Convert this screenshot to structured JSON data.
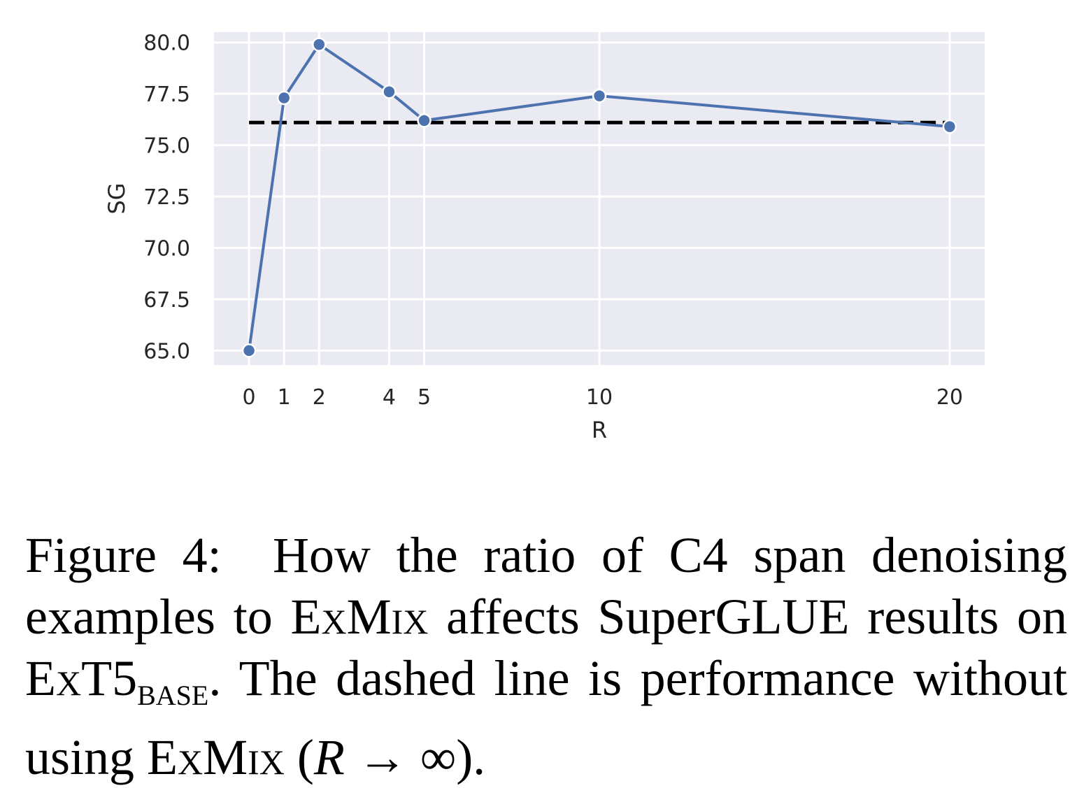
{
  "chart_data": {
    "type": "line",
    "xlabel": "R",
    "ylabel": "SG",
    "x": [
      0,
      1,
      2,
      4,
      5,
      10,
      20
    ],
    "x_ticks": [
      "0",
      "1",
      "2",
      "4",
      "5",
      "10",
      "20"
    ],
    "series": [
      {
        "values": [
          65.0,
          77.3,
          79.9,
          77.6,
          76.2,
          77.4,
          75.9
        ],
        "color": "#4c72b0",
        "marker": "circle"
      }
    ],
    "reference_line": {
      "value": 76.1,
      "style": "dashed",
      "color": "#000000"
    },
    "ylim": [
      64.3,
      80.5
    ],
    "xlim": [
      -1,
      21
    ],
    "y_ticks": [
      "65.0",
      "67.5",
      "70.0",
      "72.5",
      "75.0",
      "77.5",
      "80.0"
    ],
    "grid": true,
    "background": "#eaeaf2"
  },
  "caption": {
    "label": "Figure 4:",
    "p1": "How the ratio of C4 span denoising examples to",
    "exmix1": "ExMix",
    "p2": "affects SuperGLUE results on",
    "ext5": "ExT5",
    "ext5_sub": "BASE",
    "p3": ". The dashed line is performance without using",
    "exmix2": "ExMix",
    "p4": "(",
    "r_var": "R",
    "arrow": " → ∞",
    "p5": ")."
  }
}
